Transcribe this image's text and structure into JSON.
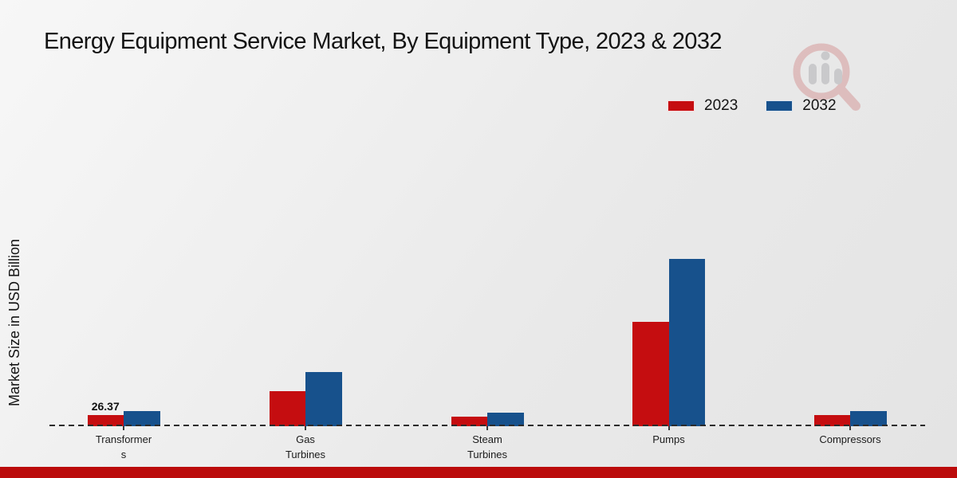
{
  "title": "Energy Equipment Service Market, By Equipment Type, 2023 & 2032",
  "watermark_icon": "magnifier-bar-chart-logo",
  "legend": {
    "items": [
      {
        "label": "2023",
        "color": "#c50d10"
      },
      {
        "label": "2032",
        "color": "#17518c"
      }
    ]
  },
  "colors": {
    "series_2023": "#c50d10",
    "series_2032": "#17518c",
    "bottom_accent": "#bb0b0b",
    "baseline": "#2b2b2b",
    "background": "#ececec"
  },
  "chart_data": {
    "type": "bar",
    "title": "Energy Equipment Service Market, By Equipment Type, 2023 & 2032",
    "xlabel": "",
    "ylabel": "Market Size in USD Billion",
    "categories": [
      "Transformers",
      "Gas Turbines",
      "Steam Turbines",
      "Pumps",
      "Compressors"
    ],
    "category_label_lines": [
      [
        "Transformer",
        "s"
      ],
      [
        "Gas",
        "Turbines"
      ],
      [
        "Steam",
        "Turbines"
      ],
      [
        "Pumps"
      ],
      [
        "Compressors"
      ]
    ],
    "series": [
      {
        "name": "2023",
        "color": "#c50d10",
        "values": [
          26.37,
          83.0,
          22.6,
          246.8,
          26.4
        ]
      },
      {
        "name": "2032",
        "color": "#17518c",
        "values": [
          35.8,
          128.1,
          32.0,
          395.7,
          35.9
        ]
      }
    ],
    "data_labels": [
      {
        "series": "2023",
        "category": "Transformers",
        "category_index": 0,
        "text": "26.37"
      }
    ],
    "ylim": [
      0,
      430
    ],
    "grid": false,
    "axis_style": "single dashed horizontal baseline, no y-axis ticks",
    "legend_position": "top-right"
  }
}
